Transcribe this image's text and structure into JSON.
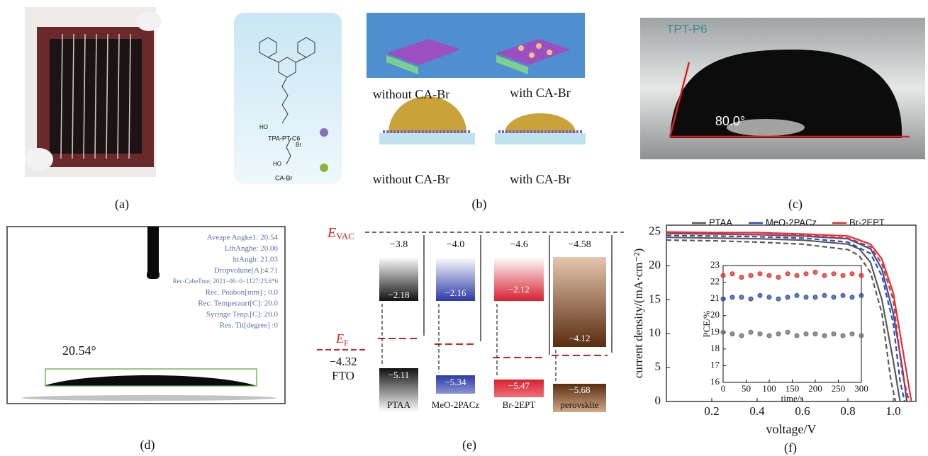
{
  "panels": {
    "a": {
      "label": "(a)"
    },
    "b": {
      "label": "(b)",
      "molecule_1": "TPA-PT-C6",
      "molecule_2": "CA-Br",
      "hydroxyl_1": "HO",
      "hydroxyl_2": "HO",
      "bromine": "Br",
      "captions": [
        "without CA-Br",
        "with CA-Br",
        "without CA-Br",
        "with CA-Br"
      ]
    },
    "c": {
      "label": "(c)",
      "sample": "TPT-P6",
      "angle": "80.0°"
    },
    "d": {
      "label": "(d)",
      "angle": "20.54°",
      "readout": [
        "Aveape Angke1: 20.54",
        "LthAnghe: 20.06",
        "htAngh: 21.03",
        "Dropvolune[A]:4.71",
        "Rec-CabeTme; 2021−06−0−1127:23.6*6",
        "Rec. Poabon[mm] ; 0.0",
        "Rec. Temperaurt[C]: 20.0",
        "Syringe Tenp.[C]: 20.0",
        "Res. Tit[degree] :0"
      ]
    },
    "e": {
      "label": "(e)",
      "vacuum_symbol": "E",
      "vacuum_subscript": "VAC",
      "fermi_symbol": "E",
      "fermi_subscript": "F",
      "fto_level": "−4.32",
      "fto": "FTO",
      "columns": [
        {
          "name": "PTAA",
          "gap": "−3.8",
          "upper": "−2.18",
          "lower": "−5.11"
        },
        {
          "name": "MeO-2PACz",
          "gap": "−4.0",
          "upper": "−2.16",
          "lower": "−5.34"
        },
        {
          "name": "Br-2EPT",
          "gap": "−4.6",
          "upper": "−2.12",
          "lower": "−5.47"
        },
        {
          "name": "perovskite",
          "gap": "−4.58",
          "upper": "−4.12",
          "lower": "−5.68"
        }
      ]
    },
    "f": {
      "label": "(f)",
      "chart_data": {
        "type": "line",
        "x_label": "voltage/V",
        "y_label": "current density/(mA·cm⁻²)",
        "xlim": [
          0,
          1.1
        ],
        "xticks": [
          0.2,
          0.4,
          0.6,
          0.8,
          {
            "value": 1.0,
            "label": "1.0"
          }
        ],
        "ylim": [
          0,
          26
        ],
        "yticks": [
          0,
          5,
          10,
          15,
          20,
          25
        ],
        "legend": "top",
        "series": [
          {
            "name": "PTAA",
            "color": "#5a5a5a",
            "x": [
              0,
              0.2,
              0.4,
              0.6,
              0.8,
              0.85,
              0.9,
              0.95,
              1.0,
              1.03
            ],
            "values": [
              24.2,
              24.1,
              24.0,
              23.8,
              23.2,
              22.5,
              20.5,
              15,
              6,
              0
            ]
          },
          {
            "name": "MeO-2PACz",
            "color": "#2f4fa8",
            "x": [
              0,
              0.2,
              0.4,
              0.6,
              0.8,
              0.9,
              0.95,
              1.0,
              1.04,
              1.06
            ],
            "values": [
              24.8,
              24.7,
              24.6,
              24.4,
              24.0,
              22.5,
              19.5,
              13,
              5,
              0
            ]
          },
          {
            "name": "Br-2EPT",
            "color": "#e0302f",
            "x": [
              0,
              0.2,
              0.4,
              0.6,
              0.8,
              0.9,
              0.95,
              1.0,
              1.05,
              1.08
            ],
            "values": [
              25.0,
              24.9,
              24.9,
              24.7,
              24.4,
              23.2,
              21,
              16,
              6,
              0
            ]
          },
          {
            "color": "#5a5a5a",
            "dash": true,
            "x": [
              0,
              0.2,
              0.4,
              0.6,
              0.8,
              0.85,
              0.9,
              0.95,
              0.99,
              1.01
            ],
            "values": [
              23.8,
              23.7,
              23.5,
              23.2,
              22.4,
              21.5,
              19,
              13,
              3,
              0
            ]
          },
          {
            "color": "#2f4fa8",
            "dash": true,
            "x": [
              0,
              0.2,
              0.4,
              0.6,
              0.8,
              0.9,
              0.95,
              1.0,
              1.03,
              1.05
            ],
            "values": [
              24.5,
              24.4,
              24.3,
              24.1,
              23.5,
              21.8,
              18.5,
              11.5,
              3,
              0
            ]
          },
          {
            "color": "#e0302f",
            "dash": true,
            "x": [
              0,
              0.2,
              0.4,
              0.6,
              0.8,
              0.9,
              0.95,
              1.0,
              1.04,
              1.07
            ],
            "values": [
              24.8,
              24.7,
              24.6,
              24.5,
              24.1,
              22.8,
              20.3,
              15,
              4,
              0
            ]
          }
        ],
        "inset": {
          "type": "scatter",
          "x_label": "time/s",
          "y_label": "PCE/%",
          "xlim": [
            0,
            300
          ],
          "xticks": [
            0,
            50,
            100,
            150,
            200,
            250,
            300
          ],
          "ylim": [
            16,
            23
          ],
          "yticks": [
            16,
            17,
            18,
            19,
            20,
            21,
            22,
            23
          ],
          "x": [
            0,
            20,
            40,
            60,
            80,
            100,
            120,
            140,
            160,
            180,
            200,
            220,
            240,
            260,
            280,
            300
          ],
          "series": [
            {
              "color": "#e0302f",
              "values": [
                22.4,
                22.5,
                22.3,
                22.4,
                22.5,
                22.4,
                22.3,
                22.5,
                22.4,
                22.5,
                22.6,
                22.4,
                22.5,
                22.4,
                22.5,
                22.4
              ]
            },
            {
              "color": "#2f4fa8",
              "values": [
                21.0,
                21.1,
                21.1,
                21.0,
                21.2,
                21.1,
                21.0,
                21.1,
                21.2,
                21.1,
                21.1,
                21.2,
                21.1,
                21.2,
                21.1,
                21.2
              ]
            },
            {
              "color": "#6e6e6e",
              "values": [
                19.0,
                18.9,
                18.8,
                19.0,
                18.9,
                18.8,
                18.9,
                19.0,
                18.8,
                18.9,
                18.9,
                18.8,
                18.9,
                18.8,
                18.9,
                18.8
              ]
            }
          ]
        }
      }
    }
  }
}
